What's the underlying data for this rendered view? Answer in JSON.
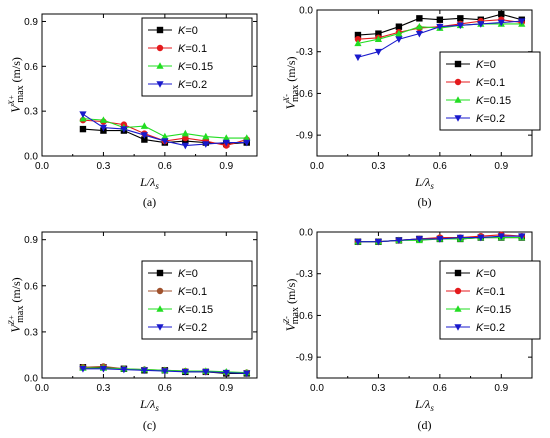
{
  "chart_data": [
    {
      "type": "line",
      "caption": "(a)",
      "ylabel": "V^{X+}_{max} (m/s)",
      "xlabel": "L/λ_s",
      "xlim": [
        0,
        1.05
      ],
      "ylim": [
        0,
        0.95
      ],
      "xticks": [
        "0.0",
        "0.3",
        "0.6",
        "0.9"
      ],
      "yticks": [
        "0.0",
        "0.3",
        "0.6",
        "0.9"
      ],
      "legend_position": "top-right",
      "x": [
        0.2,
        0.3,
        0.4,
        0.5,
        0.6,
        0.7,
        0.8,
        0.9,
        1.0
      ],
      "series": [
        {
          "name": "K=0",
          "color": "#000000",
          "marker": "square",
          "values": [
            0.18,
            0.17,
            0.17,
            0.11,
            0.09,
            0.1,
            0.09,
            0.08,
            0.09
          ]
        },
        {
          "name": "K=0.1",
          "color": "#e41a1c",
          "marker": "circle",
          "values": [
            0.24,
            0.23,
            0.21,
            0.15,
            0.1,
            0.12,
            0.1,
            0.07,
            0.11
          ]
        },
        {
          "name": "K=0.15",
          "color": "#22dd22",
          "marker": "triangle",
          "values": [
            0.25,
            0.24,
            0.19,
            0.2,
            0.13,
            0.15,
            0.13,
            0.12,
            0.12
          ]
        },
        {
          "name": "K=0.2",
          "color": "#1a1acc",
          "marker": "tri-down",
          "values": [
            0.28,
            0.19,
            0.18,
            0.14,
            0.1,
            0.07,
            0.08,
            0.09,
            0.09
          ]
        }
      ]
    },
    {
      "type": "line",
      "caption": "(b)",
      "ylabel": "V^{X-}_{max} (m/s)",
      "xlabel": "L/λ_s",
      "xlim": [
        0,
        1.05
      ],
      "ylim": [
        -1.05,
        0.0
      ],
      "xticks": [
        "0.0",
        "0.3",
        "0.6",
        "0.9"
      ],
      "yticks": [
        "0.0",
        "-0.3",
        "-0.6",
        "-0.9"
      ],
      "legend_position": "bottom-right",
      "x": [
        0.2,
        0.3,
        0.4,
        0.5,
        0.6,
        0.7,
        0.8,
        0.9,
        1.0
      ],
      "series": [
        {
          "name": "K=0",
          "color": "#000000",
          "marker": "square",
          "values": [
            -0.18,
            -0.17,
            -0.12,
            -0.06,
            -0.07,
            -0.06,
            -0.07,
            -0.03,
            -0.07
          ]
        },
        {
          "name": "K=0.1",
          "color": "#e41a1c",
          "marker": "circle",
          "values": [
            -0.21,
            -0.2,
            -0.16,
            -0.13,
            -0.12,
            -0.1,
            -0.08,
            -0.07,
            -0.09
          ]
        },
        {
          "name": "K=0.15",
          "color": "#22dd22",
          "marker": "triangle",
          "values": [
            -0.24,
            -0.21,
            -0.17,
            -0.12,
            -0.13,
            -0.11,
            -0.1,
            -0.1,
            -0.1
          ]
        },
        {
          "name": "K=0.2",
          "color": "#1a1acc",
          "marker": "tri-down",
          "values": [
            -0.34,
            -0.3,
            -0.21,
            -0.17,
            -0.12,
            -0.11,
            -0.1,
            -0.09,
            -0.08
          ]
        }
      ]
    },
    {
      "type": "line",
      "caption": "(c)",
      "ylabel": "V^{Z+}_{max} (m/s)",
      "xlabel": "L/λ_s",
      "xlim": [
        0,
        1.05
      ],
      "ylim": [
        0,
        0.95
      ],
      "xticks": [
        "0.0",
        "0.3",
        "0.6",
        "0.9"
      ],
      "yticks": [
        "0.0",
        "0.3",
        "0.6",
        "0.9"
      ],
      "legend_position": "center-right",
      "x": [
        0.2,
        0.3,
        0.4,
        0.5,
        0.6,
        0.7,
        0.8,
        0.9,
        1.0
      ],
      "series": [
        {
          "name": "K=0",
          "color": "#000000",
          "marker": "square",
          "values": [
            0.07,
            0.07,
            0.06,
            0.05,
            0.05,
            0.04,
            0.04,
            0.03,
            0.03
          ]
        },
        {
          "name": "K=0.1",
          "color": "#a0522d",
          "marker": "circle",
          "values": [
            0.07,
            0.075,
            0.06,
            0.055,
            0.05,
            0.045,
            0.04,
            0.035,
            0.035
          ]
        },
        {
          "name": "K=0.15",
          "color": "#22dd22",
          "marker": "triangle",
          "values": [
            0.065,
            0.065,
            0.06,
            0.055,
            0.05,
            0.045,
            0.045,
            0.04,
            0.035
          ]
        },
        {
          "name": "K=0.2",
          "color": "#1a1acc",
          "marker": "tri-down",
          "values": [
            0.06,
            0.06,
            0.055,
            0.05,
            0.045,
            0.04,
            0.04,
            0.035,
            0.03
          ]
        }
      ]
    },
    {
      "type": "line",
      "caption": "(d)",
      "ylabel": "V^{Z-}_{max} (m/s)",
      "xlabel": "L/λ_s",
      "xlim": [
        0,
        1.05
      ],
      "ylim": [
        -1.05,
        0.0
      ],
      "xticks": [
        "0.0",
        "0.3",
        "0.6",
        "0.9"
      ],
      "yticks": [
        "0.0",
        "-0.3",
        "-0.6",
        "-0.9"
      ],
      "legend_position": "center-right",
      "x": [
        0.2,
        0.3,
        0.4,
        0.5,
        0.6,
        0.7,
        0.8,
        0.9,
        1.0
      ],
      "series": [
        {
          "name": "K=0",
          "color": "#000000",
          "marker": "square",
          "values": [
            -0.07,
            -0.07,
            -0.06,
            -0.05,
            -0.05,
            -0.05,
            -0.04,
            -0.04,
            -0.04
          ]
        },
        {
          "name": "K=0.1",
          "color": "#e41a1c",
          "marker": "circle",
          "values": [
            -0.07,
            -0.07,
            -0.06,
            -0.05,
            -0.04,
            -0.04,
            -0.03,
            -0.02,
            -0.03
          ]
        },
        {
          "name": "K=0.15",
          "color": "#22dd22",
          "marker": "triangle",
          "values": [
            -0.07,
            -0.07,
            -0.06,
            -0.06,
            -0.05,
            -0.05,
            -0.04,
            -0.04,
            -0.04
          ]
        },
        {
          "name": "K=0.2",
          "color": "#1a1acc",
          "marker": "tri-down",
          "values": [
            -0.07,
            -0.07,
            -0.06,
            -0.05,
            -0.05,
            -0.04,
            -0.04,
            -0.03,
            -0.03
          ]
        }
      ]
    }
  ]
}
